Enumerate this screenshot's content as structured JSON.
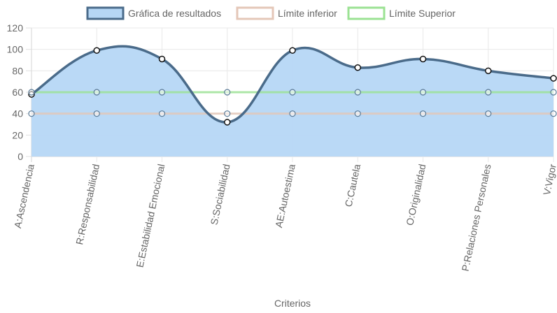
{
  "chart_data": {
    "type": "line",
    "xlabel": "Criterios",
    "ylabel": "",
    "ylim": [
      0,
      120
    ],
    "yticks": [
      0,
      20,
      40,
      60,
      80,
      100,
      120
    ],
    "grid": true,
    "legend_position": "top",
    "categories": [
      "A:Ascendencia",
      "R:Responsabilidad",
      "E:Estabilidad Emocional",
      "S:Sociabilidad",
      "AE:Autoestima",
      "C:Cautela",
      "O:Originalidad",
      "P:Relaciones Personales",
      "V:Vigor"
    ],
    "series": [
      {
        "name": "Gráfica de resultados",
        "values": [
          58,
          99,
          91,
          32,
          99,
          83,
          91,
          80,
          73
        ],
        "border_color": "#4a6b8a",
        "fill_color": "#b6d7f5",
        "filled": true,
        "curved": true
      },
      {
        "name": "Límite inferior",
        "values": [
          40,
          40,
          40,
          40,
          40,
          40,
          40,
          40,
          40
        ],
        "border_color": "#e4c7b8",
        "fill_color": "#ffffff",
        "filled": false,
        "curved": false
      },
      {
        "name": "Límite Superior",
        "values": [
          60,
          60,
          60,
          60,
          60,
          60,
          60,
          60,
          60
        ],
        "border_color": "#9be293",
        "fill_color": "#ffffff",
        "filled": false,
        "curved": false
      }
    ]
  }
}
